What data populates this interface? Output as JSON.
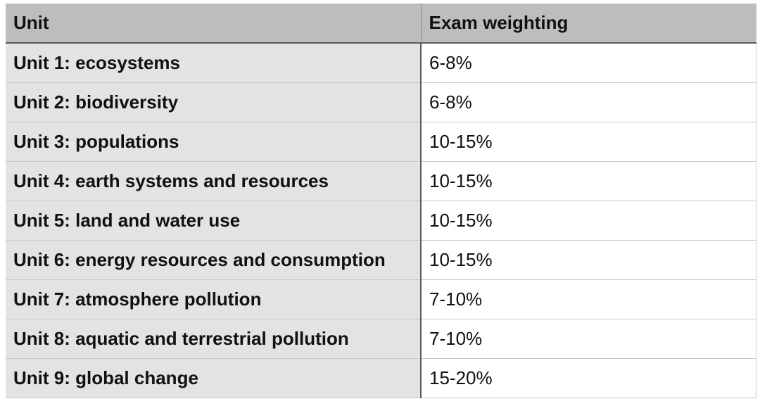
{
  "table": {
    "headers": {
      "unit": "Unit",
      "weighting": "Exam weighting"
    },
    "rows": [
      {
        "unit": "Unit 1: ecosystems",
        "weighting": "6-8%"
      },
      {
        "unit": "Unit 2: biodiversity",
        "weighting": "6-8%"
      },
      {
        "unit": "Unit 3: populations",
        "weighting": "10-15%"
      },
      {
        "unit": "Unit 4: earth systems and resources",
        "weighting": "10-15%"
      },
      {
        "unit": "Unit 5: land and water use",
        "weighting": "10-15%"
      },
      {
        "unit": "Unit 6: energy resources and consumption",
        "weighting": "10-15%"
      },
      {
        "unit": "Unit 7: atmosphere pollution",
        "weighting": "7-10%"
      },
      {
        "unit": "Unit 8: aquatic and terrestrial pollution",
        "weighting": "7-10%"
      },
      {
        "unit": "Unit 9: global change",
        "weighting": "15-20%"
      }
    ],
    "colors": {
      "header_bg": "#bdbdbd",
      "first_column_bg": "#e3e3e3",
      "second_column_bg": "#ffffff",
      "text": "#111111"
    }
  }
}
